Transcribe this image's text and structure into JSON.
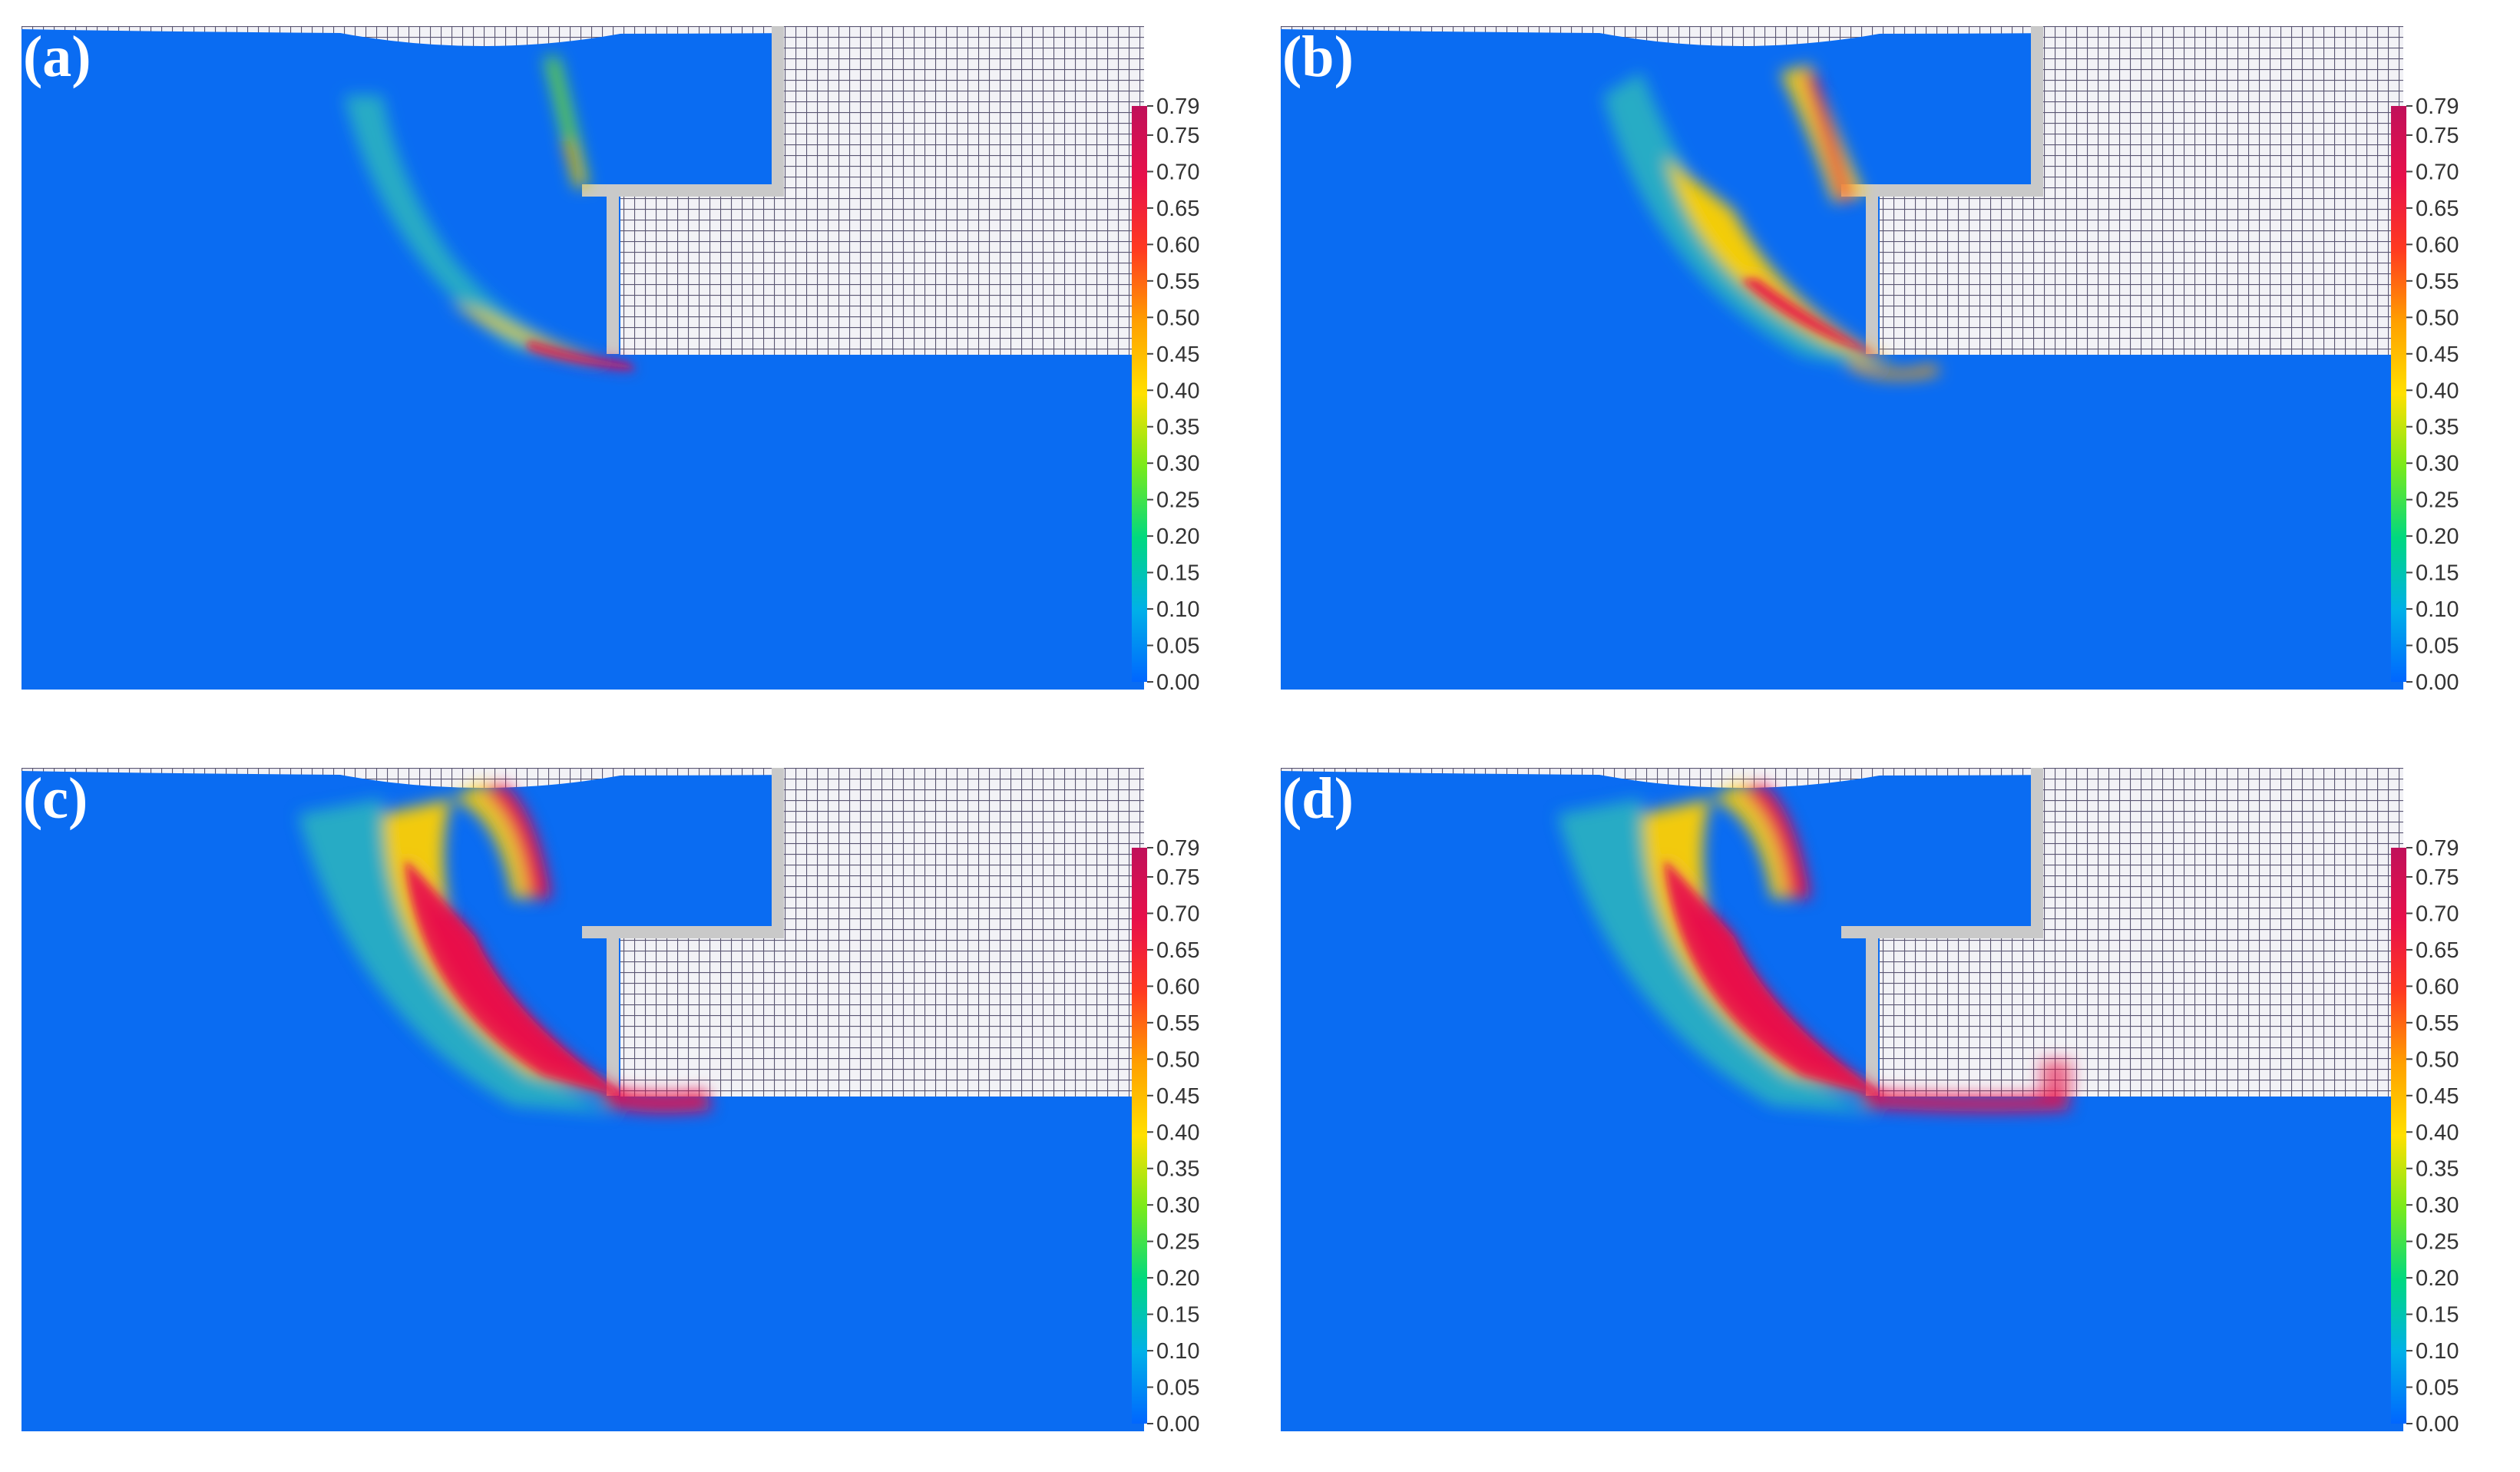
{
  "panels": [
    {
      "label": "(a)",
      "stage": 1
    },
    {
      "label": "(b)",
      "stage": 2
    },
    {
      "label": "(c)",
      "stage": 3
    },
    {
      "label": "(d)",
      "stage": 4
    }
  ],
  "colorbar": {
    "min": 0.0,
    "max": 0.79,
    "ticks": [
      "0.79",
      "0.75",
      "0.70",
      "0.65",
      "0.60",
      "0.55",
      "0.50",
      "0.45",
      "0.40",
      "0.35",
      "0.30",
      "0.25",
      "0.20",
      "0.15",
      "0.10",
      "0.05",
      "0.00"
    ],
    "colors": [
      "#0066ff",
      "#00b0e8",
      "#00d980",
      "#7aea1a",
      "#ffe000",
      "#ffa000",
      "#ff3a20",
      "#e8104a",
      "#c0105a"
    ]
  },
  "colors": {
    "field_background": "#0a6cf2",
    "mesh": "#5a5672",
    "mesh_background": "#f2f2f6",
    "wall": "#c9c9c9"
  }
}
